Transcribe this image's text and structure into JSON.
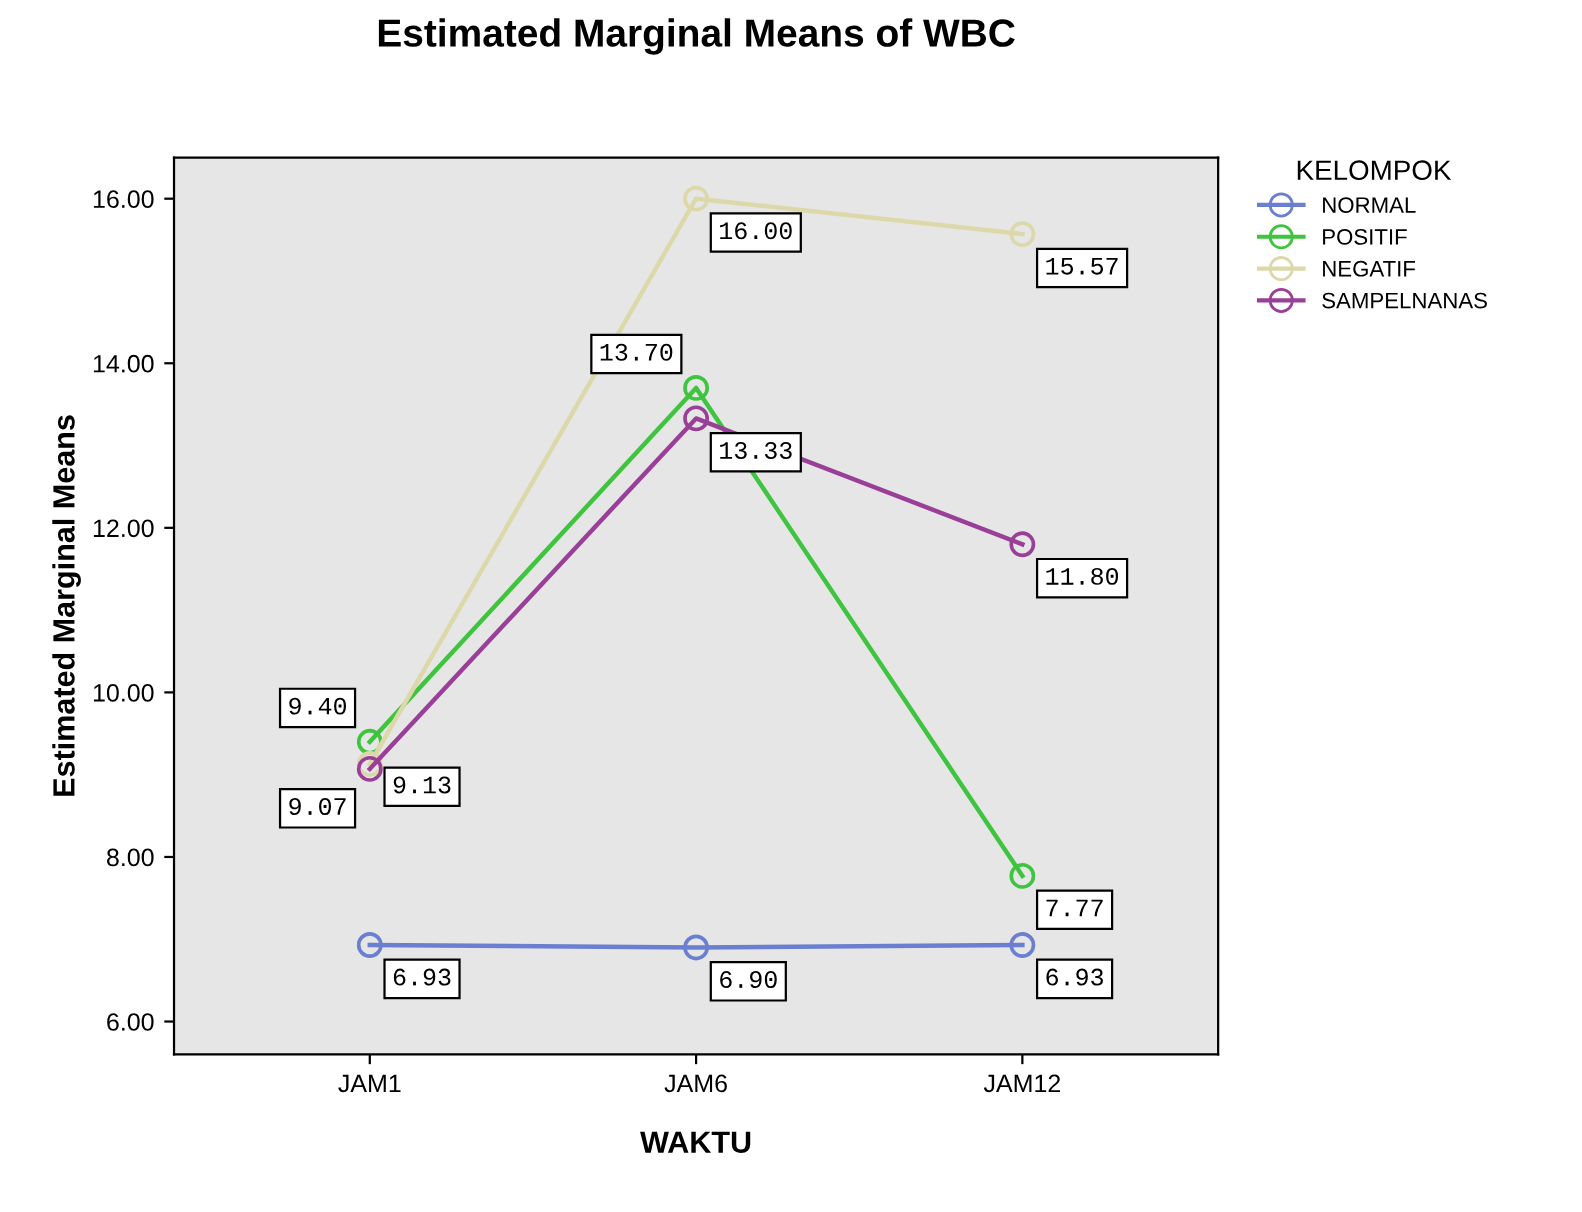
{
  "chart_data": {
    "type": "line",
    "title": "Estimated Marginal Means of WBC",
    "xlabel": "WAKTU",
    "ylabel": "Estimated Marginal Means",
    "legend_title": "KELOMPOK",
    "categories": [
      "JAM1",
      "JAM6",
      "JAM12"
    ],
    "series": [
      {
        "name": "NORMAL",
        "color": "#6a7fcf",
        "values": [
          6.93,
          6.9,
          6.93
        ],
        "value_labels": [
          "6.93",
          "6.90",
          "6.93"
        ]
      },
      {
        "name": "POSITIF",
        "color": "#3ec43e",
        "values": [
          9.4,
          13.7,
          7.77
        ],
        "value_labels": [
          "9.40",
          "13.70",
          "7.77"
        ]
      },
      {
        "name": "NEGATIF",
        "color": "#ddd8aa",
        "values": [
          9.13,
          16.0,
          15.57
        ],
        "value_labels": [
          "9.13",
          "16.00",
          "15.57"
        ]
      },
      {
        "name": "SAMPELNANAS",
        "color": "#9a3f98",
        "values": [
          9.07,
          13.33,
          11.8
        ],
        "value_labels": [
          "9.07",
          "13.33",
          "11.80"
        ]
      }
    ],
    "ylim": [
      5.6,
      16.5
    ],
    "yticks": [
      {
        "value": 6,
        "label": "6.00"
      },
      {
        "value": 8,
        "label": "8.00"
      },
      {
        "value": 10,
        "label": "10.00"
      },
      {
        "value": 12,
        "label": "12.00"
      },
      {
        "value": 14,
        "label": "14.00"
      },
      {
        "value": 16,
        "label": "16.00"
      }
    ],
    "grid": false,
    "legend": "right",
    "marker": "circle",
    "line_style": "solid"
  }
}
